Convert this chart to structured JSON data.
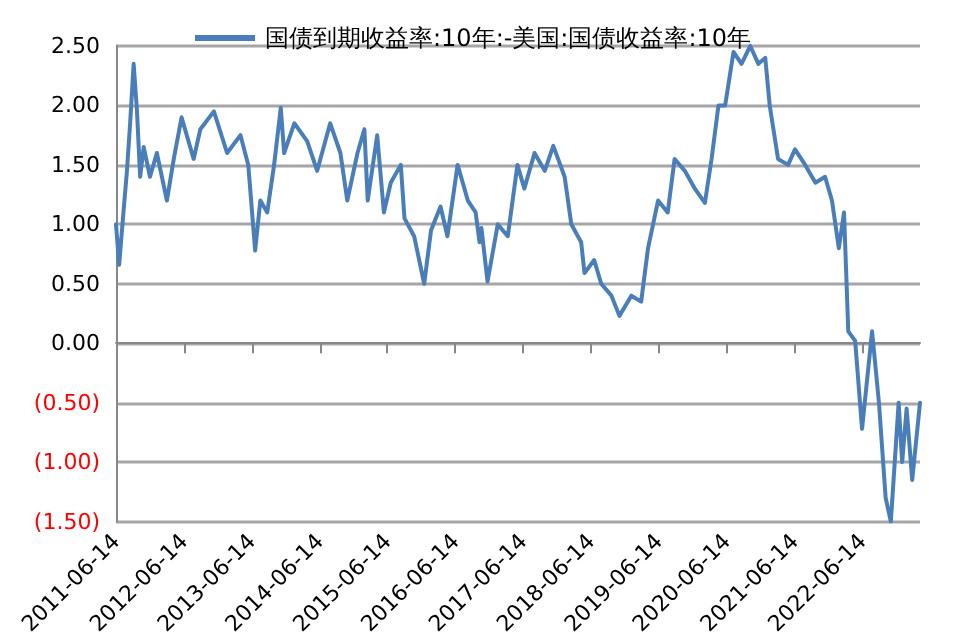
{
  "chart_data": {
    "type": "line",
    "legend": "top",
    "grid": "y",
    "marker": "none",
    "line_style": "solid",
    "x": [
      "2011-06-14",
      "2011-07-01",
      "2011-07-24",
      "2011-08-12",
      "2011-08-29",
      "2011-09-17",
      "2011-10-05",
      "2011-10-22",
      "2011-11-10",
      "2011-12-14",
      "2012-01-20",
      "2012-03-14",
      "2012-04-20",
      "2012-06-01",
      "2012-08-05",
      "2012-09-10",
      "2012-11-22",
      "2013-02-01",
      "2013-04-14",
      "2013-05-26",
      "2013-07-02",
      "2013-07-30",
      "2013-09-05",
      "2013-10-12",
      "2013-11-17",
      "2013-12-05",
      "2014-01-29",
      "2014-04-08",
      "2014-06-01",
      "2014-08-10",
      "2014-10-04",
      "2014-11-10",
      "2015-01-04",
      "2015-02-10",
      "2015-02-28",
      "2015-04-20",
      "2015-05-26",
      "2015-07-02",
      "2015-08-25",
      "2015-09-14",
      "2015-11-05",
      "2015-12-29",
      "2016-02-04",
      "2016-03-26",
      "2016-05-02",
      "2016-06-26",
      "2016-08-20",
      "2016-10-01",
      "2016-10-22",
      "2016-11-01",
      "2016-12-04",
      "2017-01-28",
      "2017-03-23",
      "2017-05-14",
      "2017-06-20",
      "2017-08-14",
      "2017-10-08",
      "2017-11-23",
      "2018-01-23",
      "2018-02-28",
      "2018-04-22",
      "2018-05-10",
      "2018-07-01",
      "2018-08-08",
      "2018-10-02",
      "2018-11-14",
      "2019-01-17",
      "2019-03-11",
      "2019-04-17",
      "2019-06-10",
      "2019-08-01",
      "2019-09-07",
      "2019-11-01",
      "2019-12-25",
      "2020-02-17",
      "2020-03-24",
      "2020-04-30",
      "2020-06-05",
      "2020-07-20",
      "2020-09-01",
      "2020-10-18",
      "2020-12-01",
      "2021-01-07",
      "2021-01-31",
      "2021-03-17",
      "2021-05-10",
      "2021-06-16",
      "2021-08-10",
      "2021-10-04",
      "2021-11-25",
      "2022-01-01",
      "2022-02-07",
      "2022-03-07",
      "2022-03-30",
      "2022-05-06",
      "2022-06-12",
      "2022-08-05",
      "2022-09-11",
      "2022-10-17",
      "2022-11-14",
      "2022-12-26",
      "2023-01-14",
      "2023-02-07",
      "2023-03-09",
      "2023-04-20"
    ],
    "series": [
      {
        "name": "国债到期收益率:10年:-美国:国债收益率:10年",
        "color": "#4a7ebb",
        "values": [
          1.0,
          0.66,
          1.1,
          1.45,
          1.85,
          2.35,
          1.95,
          1.4,
          1.65,
          1.4,
          1.6,
          1.2,
          1.55,
          1.9,
          1.55,
          1.8,
          1.95,
          1.6,
          1.75,
          1.5,
          0.78,
          1.2,
          1.1,
          1.5,
          1.98,
          1.6,
          1.85,
          1.7,
          1.45,
          1.85,
          1.6,
          1.2,
          1.6,
          1.8,
          1.2,
          1.75,
          1.1,
          1.35,
          1.5,
          1.05,
          0.9,
          0.5,
          0.95,
          1.15,
          0.9,
          1.5,
          1.2,
          1.1,
          0.85,
          0.97,
          0.52,
          1.0,
          0.9,
          1.5,
          1.3,
          1.6,
          1.45,
          1.66,
          1.4,
          1.0,
          0.85,
          0.59,
          0.7,
          0.5,
          0.4,
          0.23,
          0.4,
          0.35,
          0.8,
          1.2,
          1.1,
          1.55,
          1.45,
          1.3,
          1.18,
          1.55,
          2.0,
          2.0,
          2.45,
          2.35,
          2.5,
          2.35,
          2.4,
          2.0,
          1.55,
          1.5,
          1.63,
          1.5,
          1.35,
          1.4,
          1.2,
          0.8,
          1.1,
          0.1,
          0.02,
          -0.72,
          0.1,
          -0.5,
          -1.3,
          -1.5,
          -0.5,
          -1.0,
          -0.55,
          -1.15,
          -0.5
        ]
      }
    ],
    "xlim": [
      "2011-06-14",
      "2023-04-20"
    ],
    "xticks": [
      "2011-06-14",
      "2012-06-14",
      "2013-06-14",
      "2014-06-14",
      "2015-06-14",
      "2016-06-14",
      "2017-06-14",
      "2018-06-14",
      "2019-06-14",
      "2020-06-14",
      "2021-06-14",
      "2022-06-14"
    ],
    "ylim": [
      -1.5,
      2.5
    ],
    "yticks": [
      {
        "value": -1.5,
        "label": "(1.50)"
      },
      {
        "value": -1.0,
        "label": "(1.00)"
      },
      {
        "value": -0.5,
        "label": "(0.50)"
      },
      {
        "value": 0,
        "label": "0.00"
      },
      {
        "value": 0.5,
        "label": "0.50"
      },
      {
        "value": 1.0,
        "label": "1.00"
      },
      {
        "value": 1.5,
        "label": "1.50"
      },
      {
        "value": 2.0,
        "label": "2.00"
      },
      {
        "value": 2.5,
        "label": "2.50"
      }
    ]
  }
}
